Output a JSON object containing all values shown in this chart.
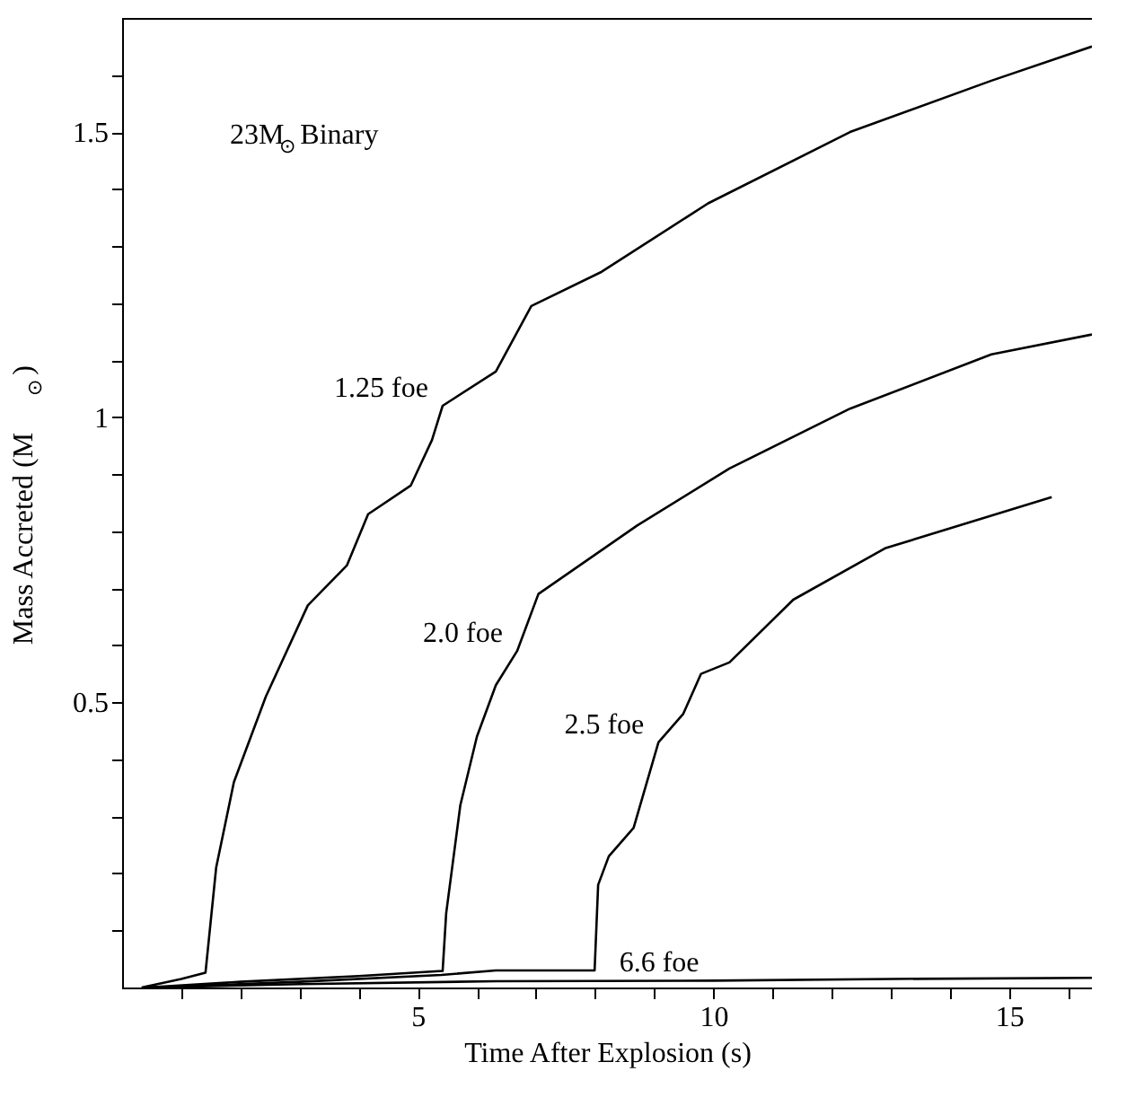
{
  "chart_data": {
    "type": "line",
    "xlabel": "Time After Explosion (s)",
    "ylabel": "Mass Accreted (M$_{⊙}$)",
    "xlim": [
      0,
      16.4
    ],
    "ylim": [
      0,
      1.7
    ],
    "xticks": [
      {
        "value": 1,
        "label": null
      },
      {
        "value": 2,
        "label": null
      },
      {
        "value": 3,
        "label": null
      },
      {
        "value": 4,
        "label": null
      },
      5,
      {
        "value": 6,
        "label": null
      },
      {
        "value": 7,
        "label": null
      },
      {
        "value": 8,
        "label": null
      },
      {
        "value": 9,
        "label": null
      },
      10,
      {
        "value": 11,
        "label": null
      },
      {
        "value": 12,
        "label": null
      },
      {
        "value": 13,
        "label": null
      },
      {
        "value": 14,
        "label": null
      },
      15,
      {
        "value": 16,
        "label": null
      }
    ],
    "yticks": [
      {
        "value": 0.1,
        "label": null
      },
      {
        "value": 0.2,
        "label": null
      },
      {
        "value": 0.3,
        "label": null
      },
      {
        "value": 0.4,
        "label": null
      },
      0.5,
      {
        "value": 0.6,
        "label": null
      },
      {
        "value": 0.7,
        "label": null
      },
      {
        "value": 0.8,
        "label": null
      },
      {
        "value": 0.9,
        "label": null
      },
      1,
      {
        "value": 1.1,
        "label": null
      },
      {
        "value": 1.2,
        "label": null
      },
      {
        "value": 1.3,
        "label": null
      },
      {
        "value": 1.4,
        "label": null
      },
      1.5,
      {
        "value": 1.6,
        "label": null
      }
    ],
    "grid": false,
    "marker": "none",
    "line_style": "solid",
    "series": [
      {
        "name": "1.25 foe",
        "color": "#000000",
        "x": [
          0.33,
          1.0,
          1.41,
          1.59,
          1.89,
          2.43,
          3.14,
          3.8,
          4.16,
          4.88,
          5.24,
          5.42,
          6.32,
          6.92,
          8.11,
          9.91,
          12.31,
          14.7,
          16.4
        ],
        "values": [
          0,
          0.015,
          0.026,
          0.21,
          0.36,
          0.51,
          0.67,
          0.74,
          0.83,
          0.88,
          0.96,
          1.02,
          1.08,
          1.195,
          1.255,
          1.375,
          1.5,
          1.59,
          1.65
        ]
      },
      {
        "name": "2.0 foe",
        "color": "#000000",
        "x": [
          0.4,
          2.0,
          4.0,
          5.42,
          5.48,
          5.72,
          6.0,
          6.32,
          6.68,
          7.04,
          8.71,
          10.27,
          12.31,
          14.7,
          16.4
        ],
        "values": [
          0,
          0.01,
          0.02,
          0.029,
          0.13,
          0.32,
          0.44,
          0.53,
          0.59,
          0.69,
          0.81,
          0.91,
          1.015,
          1.11,
          1.145
        ]
      },
      {
        "name": "2.5 foe",
        "color": "#000000",
        "x": [
          0.5,
          3.0,
          5.4,
          6.32,
          7.99,
          8.05,
          8.23,
          8.65,
          9.07,
          9.49,
          9.79,
          10.27,
          11.35,
          12.9,
          15.72
        ],
        "values": [
          0,
          0.01,
          0.022,
          0.03,
          0.03,
          0.18,
          0.23,
          0.28,
          0.43,
          0.48,
          0.55,
          0.57,
          0.68,
          0.77,
          0.86
        ]
      },
      {
        "name": "6.6 foe",
        "color": "#000000",
        "x": [
          0.5,
          3.0,
          6.32,
          10.0,
          13.0,
          16.4
        ],
        "values": [
          0,
          0.006,
          0.011,
          0.012,
          0.015,
          0.017
        ]
      }
    ],
    "annotations": [
      "23M$_{⊙}$Binary"
    ]
  }
}
